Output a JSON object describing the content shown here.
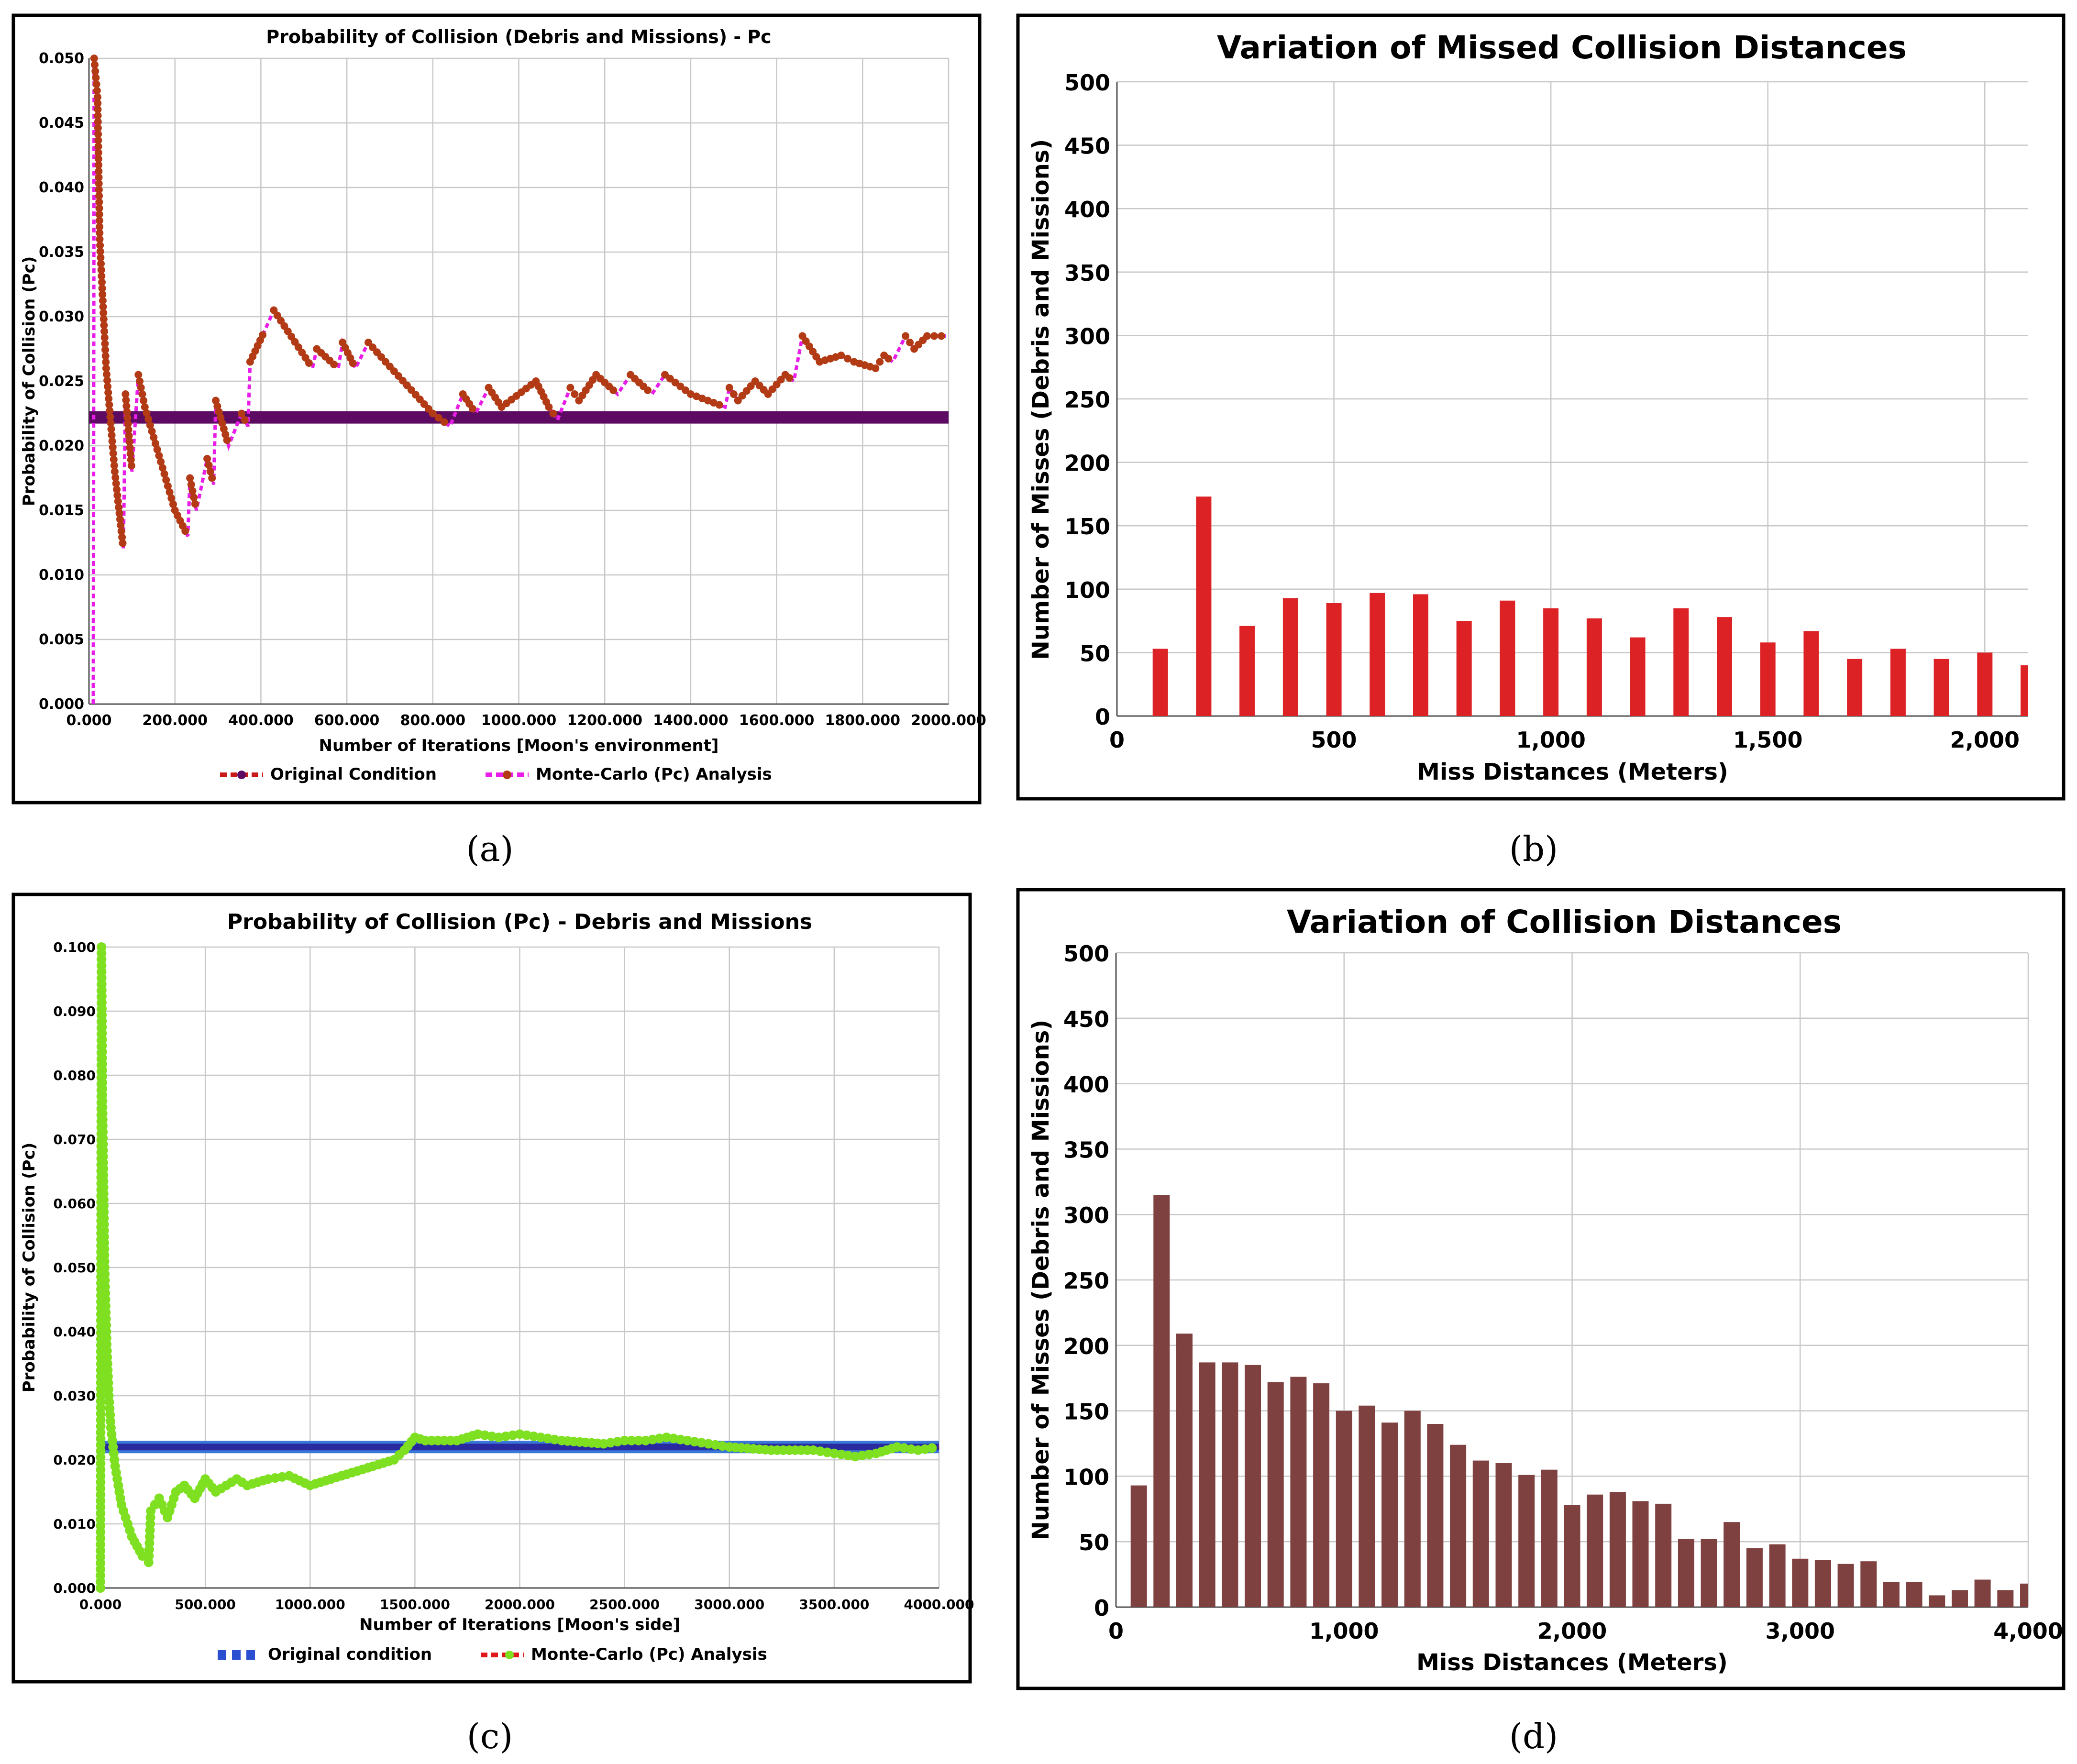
{
  "captions": [
    "(a)",
    "(b)",
    "(c)",
    "(d)"
  ],
  "chart_data": [
    {
      "type": "line",
      "title": "Probability of Collision (Debris and Missions) - Pc",
      "xlabel": "Number of Iterations [Moon's environment]",
      "ylabel": "Probability of Collision (Pc)",
      "xlim": [
        0,
        2000000
      ],
      "ylim": [
        0,
        0.05
      ],
      "xticks": [
        "0.000",
        "200.000",
        "400.000",
        "600.000",
        "800.000",
        "1000.000",
        "1200.000",
        "1400.000",
        "1600.000",
        "1800.000",
        "2000.000"
      ],
      "yticks": [
        "0.000",
        "0.005",
        "0.010",
        "0.015",
        "0.020",
        "0.025",
        "0.030",
        "0.035",
        "0.040",
        "0.045",
        "0.050"
      ],
      "legend": [
        "Original Condition",
        "Monte-Carlo (Pc) Analysis"
      ],
      "series": [
        {
          "name": "Original Condition",
          "color": "#5c0a62",
          "x": [
            0,
            2000000
          ],
          "y": [
            0.0222,
            0.0222
          ]
        },
        {
          "name": "Monte-Carlo (Pc) Analysis",
          "color": "#e81ee8",
          "marker_color": "#b23a14",
          "x": [
            10000,
            12000,
            20000,
            25000,
            40000,
            60000,
            80000,
            85000,
            100000,
            115000,
            130000,
            200000,
            230000,
            235000,
            250000,
            275000,
            290000,
            295000,
            325000,
            355000,
            370000,
            375000,
            410000,
            430000,
            520000,
            530000,
            580000,
            590000,
            620000,
            650000,
            690000,
            800000,
            840000,
            870000,
            900000,
            930000,
            960000,
            1040000,
            1070000,
            1090000,
            1120000,
            1140000,
            1180000,
            1230000,
            1260000,
            1310000,
            1340000,
            1400000,
            1480000,
            1490000,
            1510000,
            1550000,
            1580000,
            1620000,
            1640000,
            1660000,
            1700000,
            1750000,
            1780000,
            1830000,
            1850000,
            1870000,
            1900000,
            1920000,
            1950000,
            2000000
          ],
          "y": [
            0.0,
            0.05,
            0.047,
            0.036,
            0.026,
            0.018,
            0.012,
            0.024,
            0.018,
            0.0255,
            0.023,
            0.015,
            0.013,
            0.0175,
            0.015,
            0.019,
            0.017,
            0.0235,
            0.02,
            0.0225,
            0.0215,
            0.0265,
            0.029,
            0.0305,
            0.026,
            0.0275,
            0.026,
            0.028,
            0.026,
            0.028,
            0.0265,
            0.0225,
            0.0215,
            0.024,
            0.0225,
            0.0245,
            0.023,
            0.025,
            0.023,
            0.022,
            0.0245,
            0.0235,
            0.0255,
            0.024,
            0.0255,
            0.024,
            0.0255,
            0.024,
            0.023,
            0.0245,
            0.0235,
            0.025,
            0.024,
            0.0255,
            0.025,
            0.0285,
            0.0265,
            0.027,
            0.0265,
            0.026,
            0.027,
            0.0265,
            0.0285,
            0.0275,
            0.0285,
            0.0285
          ]
        }
      ]
    },
    {
      "type": "bar",
      "title": "Variation of Missed Collision Distances",
      "xlabel": "Miss Distances (Meters)",
      "ylabel": "Number of Misses (Debris and Missions)",
      "xlim": [
        0,
        2100
      ],
      "ylim": [
        0,
        500
      ],
      "xticks": [
        0,
        500,
        1000,
        1500,
        2000
      ],
      "xtick_labels": [
        "0",
        "500",
        "1,000",
        "1,500",
        "2,000"
      ],
      "yticks": [
        "0",
        "50",
        "100",
        "150",
        "200",
        "250",
        "300",
        "350",
        "400",
        "450",
        "500"
      ],
      "color": "#dd2226",
      "x": [
        100,
        200,
        300,
        400,
        500,
        600,
        700,
        800,
        900,
        1000,
        1100,
        1200,
        1300,
        1400,
        1500,
        1600,
        1700,
        1800,
        1900,
        2000,
        2100
      ],
      "values": [
        53,
        173,
        71,
        93,
        89,
        97,
        96,
        75,
        91,
        85,
        77,
        62,
        85,
        78,
        58,
        67,
        45,
        53,
        45,
        50,
        40
      ]
    },
    {
      "type": "line",
      "title": "Probability of Collision (Pc) - Debris and Missions",
      "xlabel": "Number of Iterations [Moon's side]",
      "ylabel": "Probability of Collision (Pc)",
      "xlim": [
        0,
        4000000
      ],
      "ylim": [
        0,
        0.1
      ],
      "xticks": [
        "0.000",
        "500.000",
        "1000.000",
        "1500.000",
        "2000.000",
        "2500.000",
        "3000.000",
        "3500.000",
        "4000.000"
      ],
      "yticks": [
        "0.000",
        "0.010",
        "0.020",
        "0.030",
        "0.040",
        "0.050",
        "0.060",
        "0.070",
        "0.080",
        "0.090",
        "0.100"
      ],
      "legend": [
        "Original condition",
        "Monte-Carlo (Pc) Analysis"
      ],
      "series": [
        {
          "name": "Original condition",
          "color": "#2a2aa0",
          "x": [
            0,
            4000000
          ],
          "y": [
            0.022,
            0.022
          ]
        },
        {
          "name": "Monte-Carlo (Pc) Analysis",
          "color": "#e01818",
          "marker_color": "#7ee020",
          "x": [
            0,
            5000,
            10000,
            20000,
            30000,
            40000,
            50000,
            70000,
            100000,
            150000,
            200000,
            230000,
            240000,
            280000,
            320000,
            360000,
            400000,
            450000,
            500000,
            550000,
            600000,
            650000,
            700000,
            800000,
            900000,
            1000000,
            1050000,
            1100000,
            1200000,
            1300000,
            1400000,
            1450000,
            1500000,
            1550000,
            1700000,
            1800000,
            1900000,
            2000000,
            2100000,
            2200000,
            2400000,
            2500000,
            2600000,
            2700000,
            2800000,
            2900000,
            3000000,
            3200000,
            3400000,
            3500000,
            3600000,
            3700000,
            3800000,
            3900000,
            4000000
          ],
          "y": [
            0.0,
            0.1,
            0.075,
            0.05,
            0.038,
            0.03,
            0.025,
            0.019,
            0.013,
            0.008,
            0.005,
            0.004,
            0.012,
            0.014,
            0.011,
            0.015,
            0.016,
            0.014,
            0.017,
            0.015,
            0.016,
            0.017,
            0.016,
            0.017,
            0.0175,
            0.016,
            0.0165,
            0.017,
            0.018,
            0.019,
            0.02,
            0.0215,
            0.0235,
            0.023,
            0.023,
            0.024,
            0.0235,
            0.024,
            0.0235,
            0.023,
            0.0225,
            0.023,
            0.023,
            0.0235,
            0.023,
            0.0225,
            0.022,
            0.0215,
            0.0215,
            0.021,
            0.0205,
            0.021,
            0.022,
            0.0215,
            0.022
          ]
        }
      ]
    },
    {
      "type": "bar",
      "title": "Variation of Collision Distances",
      "xlabel": "Miss Distances (Meters)",
      "ylabel": "Number of Misses (Debris and Missions)",
      "xlim": [
        0,
        4000
      ],
      "ylim": [
        0,
        500
      ],
      "xticks": [
        0,
        1000,
        2000,
        3000,
        4000
      ],
      "xtick_labels": [
        "0",
        "1,000",
        "2,000",
        "3,000",
        "4,000"
      ],
      "yticks": [
        "0",
        "50",
        "100",
        "150",
        "200",
        "250",
        "300",
        "350",
        "400",
        "450",
        "500"
      ],
      "color": "#7f4040",
      "x": [
        100,
        200,
        300,
        400,
        500,
        600,
        700,
        800,
        900,
        1000,
        1100,
        1200,
        1300,
        1400,
        1500,
        1600,
        1700,
        1800,
        1900,
        2000,
        2100,
        2200,
        2300,
        2400,
        2500,
        2600,
        2700,
        2800,
        2900,
        3000,
        3100,
        3200,
        3300,
        3400,
        3500,
        3600,
        3700,
        3800,
        3900,
        4000
      ],
      "values": [
        93,
        315,
        209,
        187,
        187,
        185,
        172,
        176,
        171,
        150,
        154,
        141,
        150,
        140,
        124,
        112,
        110,
        101,
        105,
        78,
        86,
        88,
        81,
        79,
        52,
        52,
        65,
        45,
        48,
        37,
        36,
        33,
        35,
        19,
        19,
        9,
        13,
        21,
        13,
        18
      ]
    }
  ]
}
